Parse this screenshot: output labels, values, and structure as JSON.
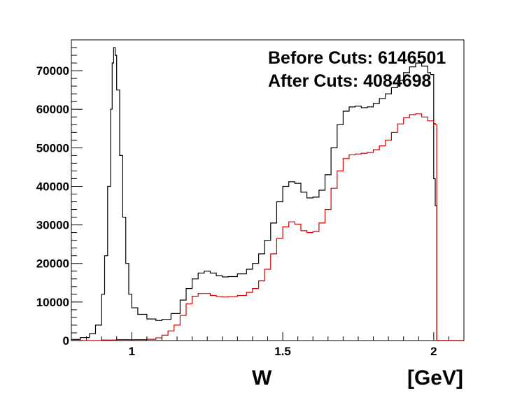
{
  "chart_data": {
    "type": "line",
    "title": "",
    "annotations": {
      "before": "Before Cuts: 6146501",
      "after": "After Cuts: 4084698"
    },
    "xlabel": "W",
    "xunit": "[GeV]",
    "ylabel": "",
    "xlim": [
      0.8,
      2.1
    ],
    "ylim": [
      0,
      78000
    ],
    "x_ticks": [
      {
        "value": 1,
        "label": "1"
      },
      {
        "value": 1.5,
        "label": "1.5"
      },
      {
        "value": 2,
        "label": "2"
      }
    ],
    "y_ticks": [
      {
        "value": 0,
        "label": "0"
      },
      {
        "value": 10000,
        "label": "10000"
      },
      {
        "value": 20000,
        "label": "20000"
      },
      {
        "value": 30000,
        "label": "30000"
      },
      {
        "value": 40000,
        "label": "40000"
      },
      {
        "value": 50000,
        "label": "50000"
      },
      {
        "value": 60000,
        "label": "60000"
      },
      {
        "value": 70000,
        "label": "70000"
      }
    ],
    "grid": false,
    "series": [
      {
        "color": "#000000",
        "points": [
          [
            0.8,
            300
          ],
          [
            0.83,
            800
          ],
          [
            0.86,
            1800
          ],
          [
            0.88,
            4000
          ],
          [
            0.9,
            12000
          ],
          [
            0.91,
            22000
          ],
          [
            0.92,
            40000
          ],
          [
            0.93,
            60000
          ],
          [
            0.935,
            72000
          ],
          [
            0.94,
            76000
          ],
          [
            0.945,
            74000
          ],
          [
            0.95,
            65000
          ],
          [
            0.96,
            48000
          ],
          [
            0.97,
            32000
          ],
          [
            0.98,
            20000
          ],
          [
            0.99,
            12000
          ],
          [
            1.0,
            8500
          ],
          [
            1.02,
            6800
          ],
          [
            1.05,
            5600
          ],
          [
            1.08,
            5200
          ],
          [
            1.1,
            5500
          ],
          [
            1.13,
            7000
          ],
          [
            1.16,
            10500
          ],
          [
            1.18,
            13500
          ],
          [
            1.2,
            16000
          ],
          [
            1.22,
            17500
          ],
          [
            1.24,
            18000
          ],
          [
            1.26,
            17500
          ],
          [
            1.28,
            16800
          ],
          [
            1.3,
            16500
          ],
          [
            1.32,
            16600
          ],
          [
            1.35,
            17300
          ],
          [
            1.38,
            18500
          ],
          [
            1.4,
            20000
          ],
          [
            1.42,
            22500
          ],
          [
            1.44,
            26000
          ],
          [
            1.46,
            30500
          ],
          [
            1.48,
            36000
          ],
          [
            1.5,
            40000
          ],
          [
            1.52,
            41200
          ],
          [
            1.54,
            40800
          ],
          [
            1.56,
            38500
          ],
          [
            1.58,
            37000
          ],
          [
            1.6,
            37200
          ],
          [
            1.62,
            39000
          ],
          [
            1.64,
            43000
          ],
          [
            1.66,
            50000
          ],
          [
            1.68,
            56000
          ],
          [
            1.7,
            59500
          ],
          [
            1.72,
            60600
          ],
          [
            1.74,
            60800
          ],
          [
            1.76,
            60400
          ],
          [
            1.78,
            60600
          ],
          [
            1.8,
            61500
          ],
          [
            1.82,
            62800
          ],
          [
            1.84,
            64000
          ],
          [
            1.86,
            65600
          ],
          [
            1.88,
            67500
          ],
          [
            1.9,
            69500
          ],
          [
            1.92,
            71000
          ],
          [
            1.94,
            72000
          ],
          [
            1.96,
            71200
          ],
          [
            1.98,
            69500
          ],
          [
            1.99,
            69000
          ],
          [
            2.0,
            42000
          ],
          [
            2.005,
            35000
          ],
          [
            2.01,
            0
          ],
          [
            2.1,
            0
          ]
        ]
      },
      {
        "color": "#d40000",
        "points": [
          [
            0.8,
            0
          ],
          [
            0.88,
            0
          ],
          [
            0.9,
            150
          ],
          [
            0.95,
            250
          ],
          [
            1.0,
            250
          ],
          [
            1.05,
            350
          ],
          [
            1.08,
            700
          ],
          [
            1.1,
            1400
          ],
          [
            1.12,
            2500
          ],
          [
            1.14,
            4000
          ],
          [
            1.16,
            6500
          ],
          [
            1.18,
            9500
          ],
          [
            1.2,
            11500
          ],
          [
            1.22,
            12200
          ],
          [
            1.24,
            12200
          ],
          [
            1.26,
            11700
          ],
          [
            1.28,
            11400
          ],
          [
            1.3,
            11300
          ],
          [
            1.32,
            11400
          ],
          [
            1.35,
            11700
          ],
          [
            1.38,
            12500
          ],
          [
            1.4,
            13500
          ],
          [
            1.42,
            15500
          ],
          [
            1.44,
            18500
          ],
          [
            1.46,
            22500
          ],
          [
            1.48,
            26500
          ],
          [
            1.5,
            29500
          ],
          [
            1.52,
            30800
          ],
          [
            1.54,
            30200
          ],
          [
            1.56,
            28500
          ],
          [
            1.58,
            28000
          ],
          [
            1.6,
            28300
          ],
          [
            1.62,
            30500
          ],
          [
            1.64,
            34000
          ],
          [
            1.66,
            39500
          ],
          [
            1.68,
            44000
          ],
          [
            1.7,
            47200
          ],
          [
            1.72,
            48200
          ],
          [
            1.74,
            48400
          ],
          [
            1.76,
            48600
          ],
          [
            1.78,
            48800
          ],
          [
            1.8,
            49500
          ],
          [
            1.82,
            50500
          ],
          [
            1.84,
            52000
          ],
          [
            1.86,
            54000
          ],
          [
            1.88,
            56200
          ],
          [
            1.9,
            57800
          ],
          [
            1.92,
            58600
          ],
          [
            1.94,
            58800
          ],
          [
            1.96,
            58000
          ],
          [
            1.98,
            57000
          ],
          [
            2.0,
            56300
          ],
          [
            2.005,
            56000
          ],
          [
            2.01,
            0
          ],
          [
            2.1,
            0
          ]
        ]
      }
    ]
  }
}
